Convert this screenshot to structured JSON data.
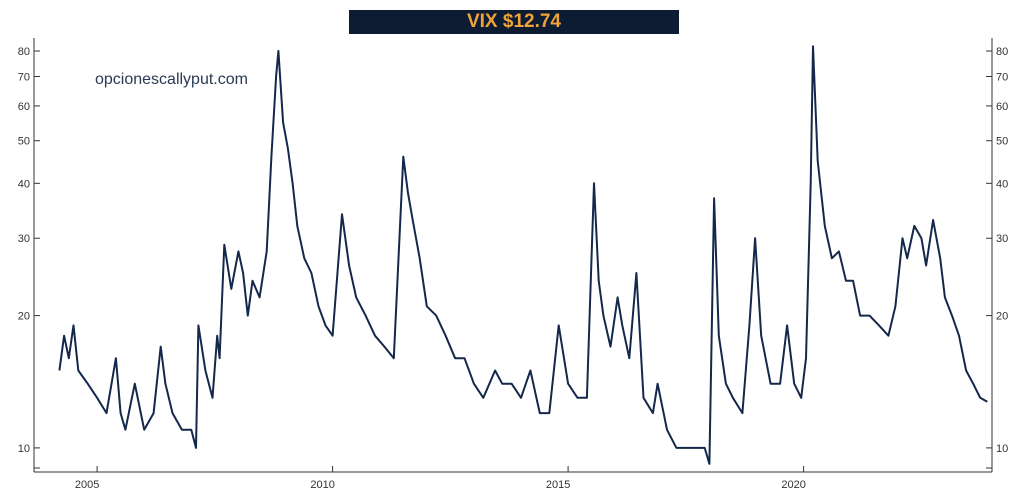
{
  "header": {
    "title": "VIX $12.74"
  },
  "watermark": "opcionescallyput.com",
  "colors": {
    "line": "#13284a",
    "title_bg": "#0d1b33",
    "title_text": "#f0a338",
    "axis": "#333333"
  },
  "chart_data": {
    "type": "line",
    "title": "VIX $12.74",
    "xlabel": "",
    "ylabel": "",
    "y_scale": "log",
    "ylim": [
      9,
      83
    ],
    "xlim": [
      2004.0,
      2024.0
    ],
    "y_ticks": [
      10,
      20,
      30,
      40,
      50,
      60,
      70,
      80
    ],
    "x_ticks": [
      {
        "value": 2005,
        "label": "2005"
      },
      {
        "value": 2010,
        "label": "2010"
      },
      {
        "value": 2015,
        "label": "2015"
      },
      {
        "value": 2020,
        "label": "2020"
      }
    ],
    "grid": false,
    "legend": "none",
    "series": [
      {
        "values_x": [
          2004.2,
          2004.3,
          2004.4,
          2004.5,
          2004.6,
          2004.8,
          2005.0,
          2005.2,
          2005.4,
          2005.5,
          2005.6,
          2005.8,
          2006.0,
          2006.2,
          2006.35,
          2006.45,
          2006.6,
          2006.8,
          2007.0,
          2007.1,
          2007.15,
          2007.3,
          2007.45,
          2007.55,
          2007.6,
          2007.7,
          2007.85,
          2008.0,
          2008.1,
          2008.2,
          2008.3,
          2008.45,
          2008.6,
          2008.7,
          2008.8,
          2008.85,
          2008.95,
          2009.05,
          2009.15,
          2009.25,
          2009.4,
          2009.55,
          2009.7,
          2009.85,
          2010.0,
          2010.2,
          2010.35,
          2010.5,
          2010.7,
          2010.9,
          2011.1,
          2011.3,
          2011.5,
          2011.6,
          2011.7,
          2011.85,
          2012.0,
          2012.2,
          2012.4,
          2012.6,
          2012.8,
          2013.0,
          2013.2,
          2013.45,
          2013.6,
          2013.8,
          2014.0,
          2014.2,
          2014.4,
          2014.6,
          2014.8,
          2015.0,
          2015.2,
          2015.4,
          2015.55,
          2015.65,
          2015.75,
          2015.9,
          2016.05,
          2016.15,
          2016.3,
          2016.45,
          2016.6,
          2016.8,
          2016.9,
          2017.1,
          2017.3,
          2017.5,
          2017.7,
          2017.9,
          2018.0,
          2018.1,
          2018.2,
          2018.35,
          2018.5,
          2018.7,
          2018.85,
          2018.97,
          2019.1,
          2019.3,
          2019.5,
          2019.65,
          2019.8,
          2019.95,
          2020.05,
          2020.15,
          2020.2,
          2020.3,
          2020.45,
          2020.6,
          2020.75,
          2020.9,
          2021.05,
          2021.2,
          2021.4,
          2021.6,
          2021.8,
          2021.95,
          2022.1,
          2022.2,
          2022.35,
          2022.5,
          2022.6,
          2022.75,
          2022.9,
          2023.0,
          2023.15,
          2023.3,
          2023.45,
          2023.6,
          2023.75,
          2023.9
        ],
        "values_y": [
          15,
          18,
          16,
          19,
          15,
          14,
          13,
          12,
          16,
          12,
          11,
          14,
          11,
          12,
          17,
          14,
          12,
          11,
          11,
          10,
          19,
          15,
          13,
          18,
          16,
          29,
          23,
          28,
          25,
          20,
          24,
          22,
          28,
          46,
          70,
          80,
          55,
          48,
          40,
          32,
          27,
          25,
          21,
          19,
          18,
          34,
          26,
          22,
          20,
          18,
          17,
          16,
          46,
          38,
          33,
          27,
          21,
          20,
          18,
          16,
          16,
          14,
          13,
          15,
          14,
          14,
          13,
          15,
          12,
          12,
          19,
          14,
          13,
          13,
          40,
          24,
          20,
          17,
          22,
          19,
          16,
          25,
          13,
          12,
          14,
          11,
          10,
          10,
          10,
          10,
          9.2,
          37,
          18,
          14,
          13,
          12,
          19,
          30,
          18,
          14,
          14,
          19,
          14,
          13,
          16,
          40,
          82,
          45,
          32,
          27,
          28,
          24,
          24,
          20,
          20,
          19,
          18,
          21,
          30,
          27,
          32,
          30,
          26,
          33,
          27,
          22,
          20,
          18,
          15,
          14,
          13,
          12.74
        ]
      }
    ]
  }
}
